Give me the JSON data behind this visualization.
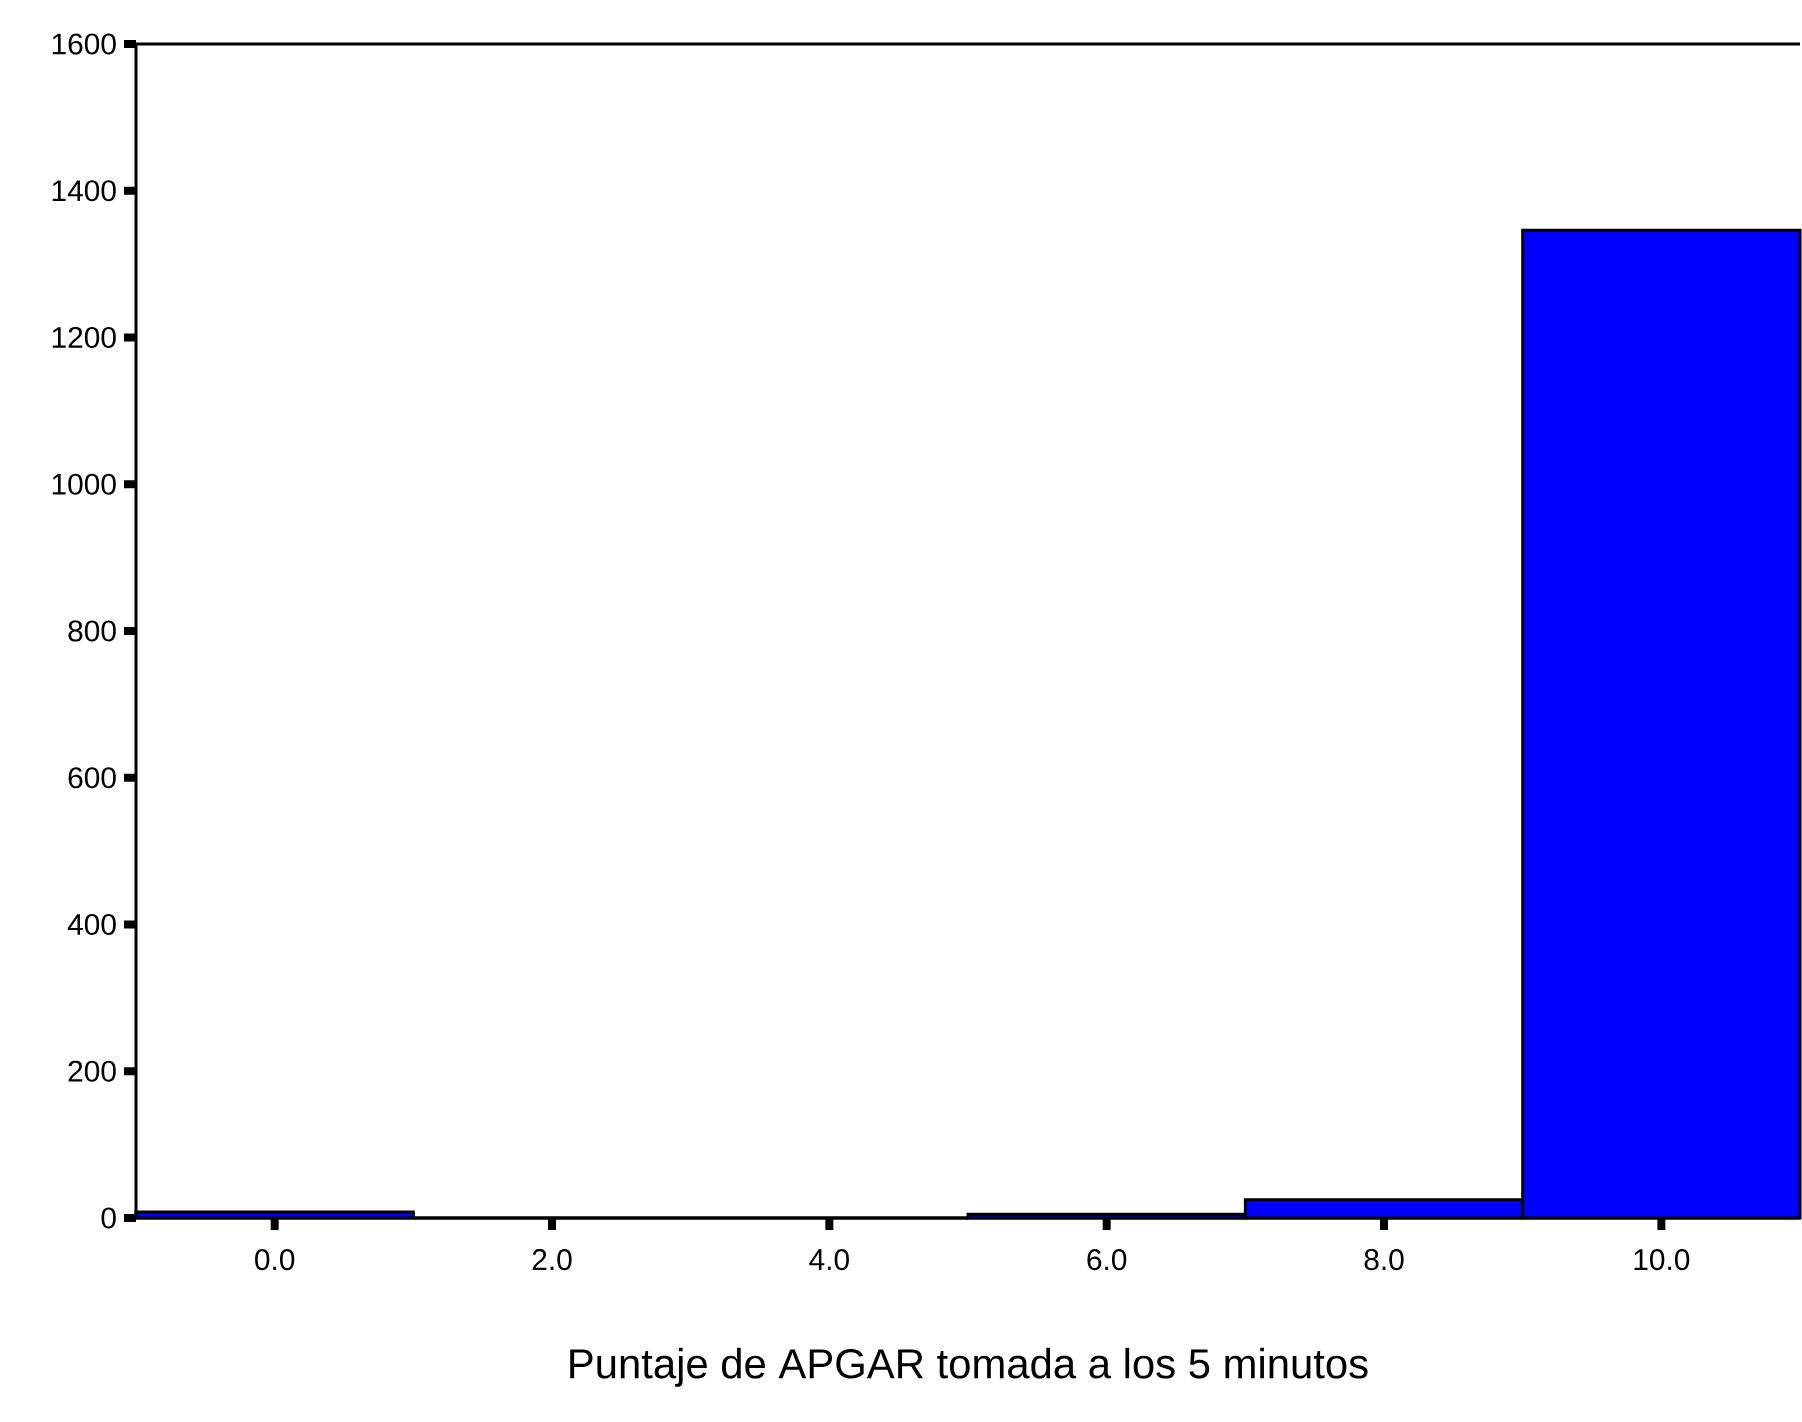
{
  "chart_data": {
    "type": "histogram",
    "xlabel": "Puntaje de APGAR tomada a los 5 minutos",
    "bins": [
      -1,
      1,
      3,
      5,
      7,
      9,
      11
    ],
    "values": [
      8,
      0,
      0,
      5,
      25,
      1346
    ],
    "color": "#0000ff",
    "xlim": [
      -1,
      11
    ],
    "ylim": [
      0,
      1600
    ],
    "xticks": [
      {
        "value": 0,
        "label": "0.0"
      },
      {
        "value": 2,
        "label": "2.0"
      },
      {
        "value": 4,
        "label": "4.0"
      },
      {
        "value": 6,
        "label": "6.0"
      },
      {
        "value": 8,
        "label": "8.0"
      },
      {
        "value": 10,
        "label": "10.0"
      }
    ],
    "yticks": [
      0,
      200,
      400,
      600,
      800,
      1000,
      1200,
      1400,
      1600
    ],
    "grid": false
  }
}
